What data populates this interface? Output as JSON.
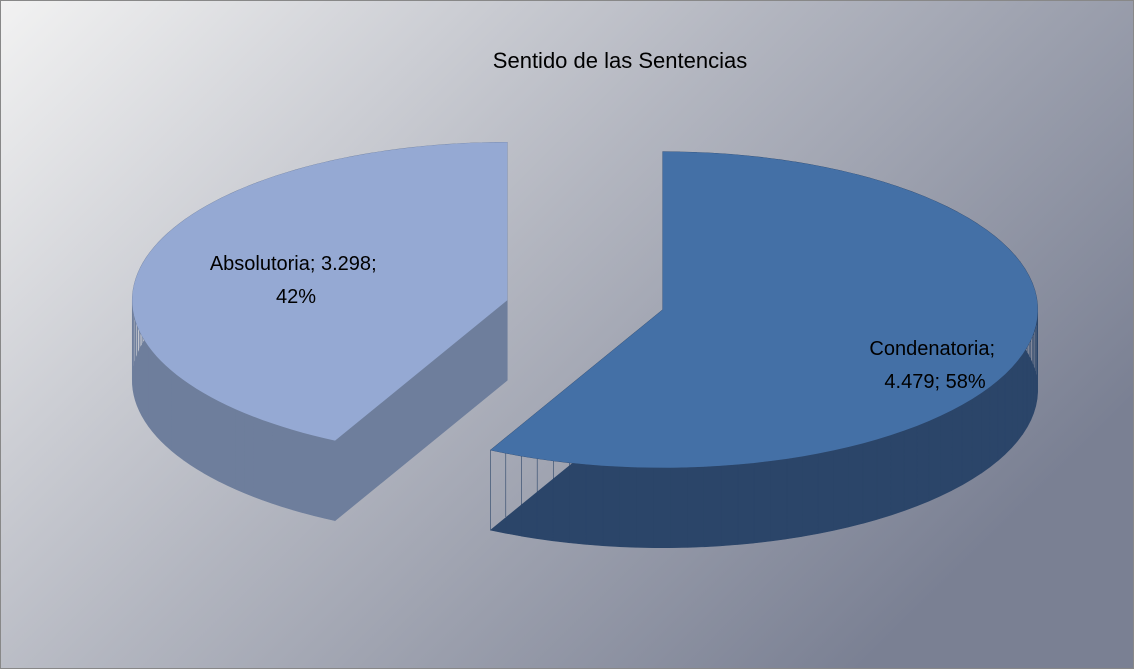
{
  "chart_data": {
    "type": "pie3d",
    "title": "Sentido de las Sentencias",
    "categories": [
      "Condenatoria",
      "Absolutoria"
    ],
    "values": [
      4479,
      3298
    ],
    "value_labels": [
      "4.479",
      "3.298"
    ],
    "percents": [
      58,
      42
    ],
    "percent_labels": [
      "58%",
      "42%"
    ],
    "label_separator": "; ",
    "colors": [
      "#4470a6",
      "#95a9d3"
    ],
    "side_colors": [
      "#2b4569",
      "#6e7e9c"
    ]
  }
}
